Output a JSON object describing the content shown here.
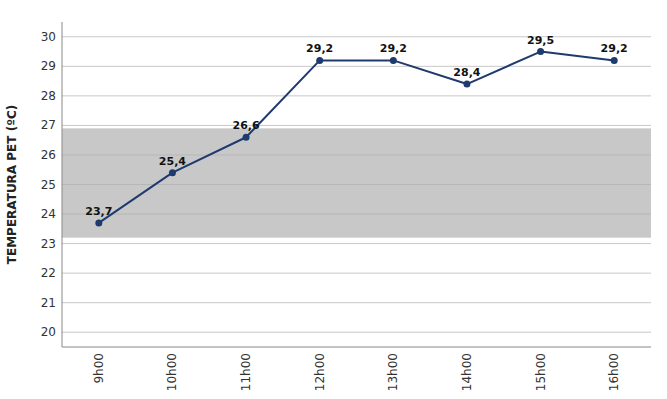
{
  "chart_data": {
    "type": "line",
    "categories": [
      "9h00",
      "10h00",
      "11h00",
      "12h00",
      "13h00",
      "14h00",
      "15h00",
      "16h00"
    ],
    "values": [
      23.7,
      25.4,
      26.6,
      29.2,
      29.2,
      28.4,
      29.5,
      29.2
    ],
    "value_labels": [
      "23,7",
      "25,4",
      "26,6",
      "29,2",
      "29,2",
      "28,4",
      "29,5",
      "29,2"
    ],
    "data_labels": true,
    "color": "#1f3a6e",
    "marker": "circle",
    "band": {
      "from": 23.2,
      "to": 26.9,
      "color": "#c8c8c8"
    },
    "ylabel": "TEMPERATURA PET (ºC)",
    "ylim": [
      19.5,
      30.5
    ],
    "yticks": [
      20,
      21,
      22,
      23,
      24,
      25,
      26,
      27,
      28,
      29,
      30
    ],
    "grid": true
  }
}
